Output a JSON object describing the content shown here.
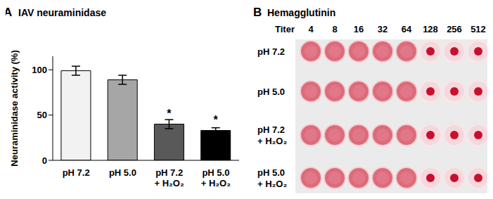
{
  "chart_data": {
    "type": "bar",
    "panel": "A",
    "title": "IAV neuraminidase",
    "categories": [
      "pH 7.2",
      "pH 5.0",
      "pH 7.2 + H₂O₂",
      "pH 5.0 + H₂O₂"
    ],
    "values": [
      99,
      89,
      40,
      33
    ],
    "error": [
      5,
      5,
      5,
      3
    ],
    "colors": [
      "#f2f2f2",
      "#a6a6a6",
      "#595959",
      "#000000"
    ],
    "ylabel": "Neuraminidase activity (%)",
    "ylim": [
      0,
      115
    ],
    "yticks": [
      0,
      50,
      100
    ],
    "annotations": [
      {
        "category": "pH 7.2 + H₂O₂",
        "text": "*"
      },
      {
        "category": "pH 5.0 + H₂O₂",
        "text": "*"
      }
    ]
  },
  "plate": {
    "panel": "B",
    "title": "Hemagglutinin",
    "column_title": "Titer",
    "titers": [
      4,
      8,
      16,
      32,
      64,
      128,
      256,
      512
    ],
    "rows": [
      {
        "label": "pH 7.2",
        "agglutinated": [
          true,
          true,
          true,
          true,
          true,
          false,
          false,
          false
        ]
      },
      {
        "label": "pH 5.0",
        "agglutinated": [
          true,
          true,
          true,
          true,
          true,
          false,
          false,
          false
        ]
      },
      {
        "label": "pH 7.2 + H₂O₂",
        "agglutinated": [
          true,
          true,
          true,
          true,
          true,
          false,
          false,
          false
        ]
      },
      {
        "label": "pH 5.0 + H₂O₂",
        "agglutinated": [
          true,
          true,
          true,
          true,
          true,
          false,
          false,
          false
        ]
      }
    ]
  }
}
